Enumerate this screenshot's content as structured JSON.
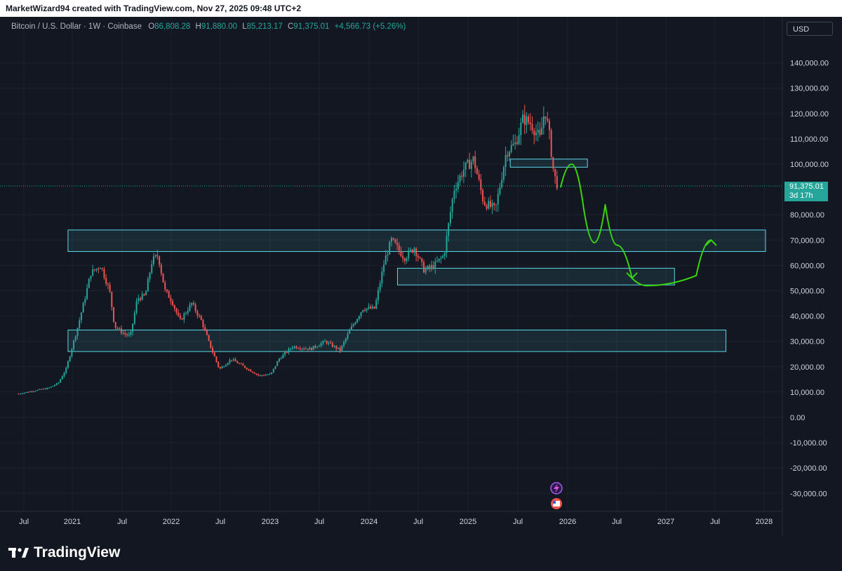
{
  "header": {
    "attribution": "MarketWizard94 created with TradingView.com, Nov 27, 2025 09:48 UTC+2"
  },
  "legend": {
    "symbol": "Bitcoin / U.S. Dollar · 1W · Coinbase",
    "open_label": "O",
    "open": "86,808.28",
    "high_label": "H",
    "high": "91,880.00",
    "low_label": "L",
    "low": "85,213.17",
    "close_label": "C",
    "close": "91,375.01",
    "change": "+4,566.73 (+5.26%)"
  },
  "toolbar": {
    "currency": "USD"
  },
  "price_badge": {
    "price": "91,375.01",
    "countdown": "3d 17h"
  },
  "footer": {
    "brand": "TradingView"
  },
  "colors": {
    "background": "#131722",
    "up": "#26a69a",
    "down": "#ef5350",
    "zone": "#5ad8e6",
    "drawing": "#3ad40f",
    "axis_text": "#d1d4dc"
  },
  "chart_data": {
    "type": "candlestick",
    "interval": "1W",
    "x_ticks": [
      "Jul",
      "2021",
      "Jul",
      "2022",
      "Jul",
      "2023",
      "Jul",
      "2024",
      "Jul",
      "2025",
      "Jul",
      "2026",
      "Jul",
      "2027",
      "Jul",
      "2028"
    ],
    "y_ticks": [
      "140,000.00",
      "130,000.00",
      "120,000.00",
      "110,000.00",
      "100,000.00",
      "80,000.00",
      "70,000.00",
      "60,000.00",
      "50,000.00",
      "40,000.00",
      "30,000.00",
      "20,000.00",
      "10,000.00",
      "0.00",
      "-10,000.00",
      "-20,000.00",
      "-30,000.00"
    ],
    "ylim": [
      -34000,
      150000
    ],
    "last_price": 91375.01,
    "price_series": [
      {
        "t": 2020.45,
        "p": 9300
      },
      {
        "t": 2020.6,
        "p": 10500
      },
      {
        "t": 2020.75,
        "p": 11500
      },
      {
        "t": 2020.85,
        "p": 13500
      },
      {
        "t": 2020.93,
        "p": 19000
      },
      {
        "t": 2021.0,
        "p": 29000
      },
      {
        "t": 2021.05,
        "p": 36000
      },
      {
        "t": 2021.12,
        "p": 47000
      },
      {
        "t": 2021.18,
        "p": 57000
      },
      {
        "t": 2021.28,
        "p": 60000
      },
      {
        "t": 2021.37,
        "p": 50000
      },
      {
        "t": 2021.42,
        "p": 36000
      },
      {
        "t": 2021.52,
        "p": 33000
      },
      {
        "t": 2021.58,
        "p": 32000
      },
      {
        "t": 2021.65,
        "p": 47000
      },
      {
        "t": 2021.73,
        "p": 48000
      },
      {
        "t": 2021.8,
        "p": 62000
      },
      {
        "t": 2021.86,
        "p": 64000
      },
      {
        "t": 2021.93,
        "p": 50000
      },
      {
        "t": 2022.0,
        "p": 46000
      },
      {
        "t": 2022.08,
        "p": 38000
      },
      {
        "t": 2022.2,
        "p": 45000
      },
      {
        "t": 2022.3,
        "p": 38000
      },
      {
        "t": 2022.38,
        "p": 29000
      },
      {
        "t": 2022.48,
        "p": 19000
      },
      {
        "t": 2022.6,
        "p": 23000
      },
      {
        "t": 2022.75,
        "p": 19500
      },
      {
        "t": 2022.88,
        "p": 16500
      },
      {
        "t": 2023.0,
        "p": 17000
      },
      {
        "t": 2023.08,
        "p": 23000
      },
      {
        "t": 2023.22,
        "p": 28000
      },
      {
        "t": 2023.4,
        "p": 27000
      },
      {
        "t": 2023.55,
        "p": 30000
      },
      {
        "t": 2023.7,
        "p": 26500
      },
      {
        "t": 2023.8,
        "p": 34500
      },
      {
        "t": 2023.93,
        "p": 43000
      },
      {
        "t": 2024.05,
        "p": 43000
      },
      {
        "t": 2024.15,
        "p": 62000
      },
      {
        "t": 2024.22,
        "p": 70000
      },
      {
        "t": 2024.35,
        "p": 63000
      },
      {
        "t": 2024.45,
        "p": 67000
      },
      {
        "t": 2024.55,
        "p": 58000
      },
      {
        "t": 2024.65,
        "p": 60000
      },
      {
        "t": 2024.75,
        "p": 64000
      },
      {
        "t": 2024.85,
        "p": 90000
      },
      {
        "t": 2024.95,
        "p": 98000
      },
      {
        "t": 2025.05,
        "p": 102000
      },
      {
        "t": 2025.15,
        "p": 85000
      },
      {
        "t": 2025.27,
        "p": 82000
      },
      {
        "t": 2025.38,
        "p": 105000
      },
      {
        "t": 2025.47,
        "p": 108000
      },
      {
        "t": 2025.55,
        "p": 118000
      },
      {
        "t": 2025.63,
        "p": 116000
      },
      {
        "t": 2025.72,
        "p": 110000
      },
      {
        "t": 2025.77,
        "p": 122000
      },
      {
        "t": 2025.82,
        "p": 110000
      },
      {
        "t": 2025.86,
        "p": 96000
      },
      {
        "t": 2025.9,
        "p": 91375
      }
    ],
    "zones": [
      {
        "name": "zone-upper",
        "t0": 2020.95,
        "t1": 2028.0,
        "low": 65500,
        "high": 74000
      },
      {
        "name": "zone-resistance",
        "t0": 2025.42,
        "t1": 2026.2,
        "low": 98800,
        "high": 102000
      },
      {
        "name": "zone-middle",
        "t0": 2024.28,
        "t1": 2027.08,
        "low": 52300,
        "high": 58900
      },
      {
        "name": "zone-lower",
        "t0": 2020.95,
        "t1": 2027.6,
        "low": 26000,
        "high": 34500
      }
    ],
    "projection": [
      {
        "t": 2025.93,
        "p": 91000
      },
      {
        "t": 2026.04,
        "p": 100000
      },
      {
        "t": 2026.16,
        "p": 83000
      },
      {
        "t": 2026.27,
        "p": 69000
      },
      {
        "t": 2026.38,
        "p": 84000
      },
      {
        "t": 2026.5,
        "p": 68000
      },
      {
        "t": 2026.65,
        "p": 55000
      },
      {
        "t": 2026.8,
        "p": 52000
      },
      {
        "t": 2027.3,
        "p": 56000
      },
      {
        "t": 2027.45,
        "p": 70000
      }
    ]
  }
}
